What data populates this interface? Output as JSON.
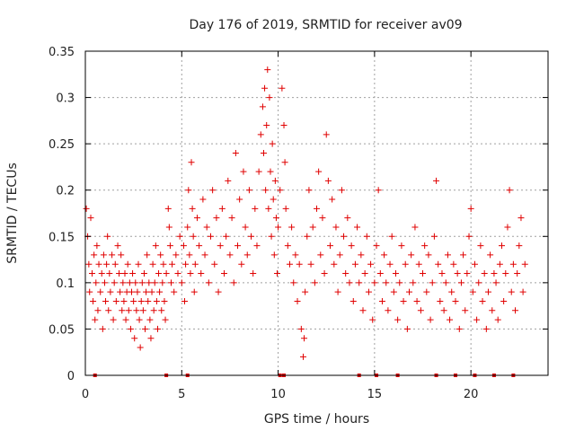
{
  "chart_data": {
    "type": "scatter",
    "title": "Day 176 of 2019, SRMTID for receiver av09",
    "xlabel": "GPS time / hours",
    "ylabel": "SRMTID / TECUs",
    "xlim": [
      0,
      24
    ],
    "ylim": [
      0,
      0.35
    ],
    "x_ticks": [
      0,
      5,
      10,
      15,
      20
    ],
    "x_tick_labels": [
      "0",
      "5",
      "10",
      "15",
      "20"
    ],
    "y_ticks": [
      0,
      0.05,
      0.1,
      0.15,
      0.2,
      0.25,
      0.3,
      0.35
    ],
    "y_tick_labels": [
      "0",
      "0.05",
      "0.1",
      "0.15",
      "0.2",
      "0.25",
      "0.3",
      "0.35"
    ],
    "grid": true,
    "marker": "+",
    "color": "#e00000",
    "series": [
      {
        "name": "SRMTID",
        "points": [
          [
            0.05,
            0.18
          ],
          [
            0.12,
            0.15
          ],
          [
            0.18,
            0.12
          ],
          [
            0.22,
            0.09
          ],
          [
            0.28,
            0.17
          ],
          [
            0.35,
            0.11
          ],
          [
            0.4,
            0.08
          ],
          [
            0.45,
            0.13
          ],
          [
            0.5,
            0.06
          ],
          [
            0.55,
            0.1
          ],
          [
            0.6,
            0.14
          ],
          [
            0.65,
            0.07
          ],
          [
            0.7,
            0.12
          ],
          [
            0.78,
            0.09
          ],
          [
            0.85,
            0.11
          ],
          [
            0.9,
            0.05
          ],
          [
            0.95,
            0.13
          ],
          [
            1.0,
            0.1
          ],
          [
            1.05,
            0.08
          ],
          [
            1.1,
            0.12
          ],
          [
            1.15,
            0.15
          ],
          [
            1.2,
            0.07
          ],
          [
            1.25,
            0.11
          ],
          [
            1.3,
            0.09
          ],
          [
            1.38,
            0.13
          ],
          [
            1.45,
            0.06
          ],
          [
            1.5,
            0.1
          ],
          [
            1.55,
            0.12
          ],
          [
            1.6,
            0.08
          ],
          [
            1.68,
            0.14
          ],
          [
            1.75,
            0.11
          ],
          [
            1.8,
            0.09
          ],
          [
            1.85,
            0.13
          ],
          [
            1.9,
            0.07
          ],
          [
            1.95,
            0.1
          ],
          [
            2.0,
            0.08
          ],
          [
            2.05,
            0.11
          ],
          [
            2.1,
            0.06
          ],
          [
            2.15,
            0.09
          ],
          [
            2.2,
            0.12
          ],
          [
            2.25,
            0.07
          ],
          [
            2.3,
            0.1
          ],
          [
            2.35,
            0.05
          ],
          [
            2.4,
            0.09
          ],
          [
            2.45,
            0.11
          ],
          [
            2.5,
            0.08
          ],
          [
            2.55,
            0.04
          ],
          [
            2.6,
            0.1
          ],
          [
            2.65,
            0.07
          ],
          [
            2.7,
            0.09
          ],
          [
            2.75,
            0.12
          ],
          [
            2.8,
            0.06
          ],
          [
            2.85,
            0.03
          ],
          [
            2.9,
            0.08
          ],
          [
            2.95,
            0.1
          ],
          [
            3.0,
            0.07
          ],
          [
            3.05,
            0.11
          ],
          [
            3.1,
            0.05
          ],
          [
            3.15,
            0.09
          ],
          [
            3.2,
            0.13
          ],
          [
            3.25,
            0.08
          ],
          [
            3.3,
            0.1
          ],
          [
            3.35,
            0.06
          ],
          [
            3.4,
            0.04
          ],
          [
            3.45,
            0.09
          ],
          [
            3.5,
            0.12
          ],
          [
            3.55,
            0.07
          ],
          [
            3.6,
            0.1
          ],
          [
            3.65,
            0.14
          ],
          [
            3.7,
            0.08
          ],
          [
            3.75,
            0.05
          ],
          [
            3.8,
            0.11
          ],
          [
            3.85,
            0.09
          ],
          [
            3.9,
            0.13
          ],
          [
            3.95,
            0.07
          ],
          [
            4.0,
            0.1
          ],
          [
            4.05,
            0.12
          ],
          [
            4.1,
            0.08
          ],
          [
            4.15,
            0.06
          ],
          [
            4.2,
            0.11
          ],
          [
            4.3,
            0.18
          ],
          [
            4.35,
            0.16
          ],
          [
            4.4,
            0.14
          ],
          [
            4.45,
            0.1
          ],
          [
            4.5,
            0.12
          ],
          [
            4.6,
            0.09
          ],
          [
            4.7,
            0.13
          ],
          [
            4.8,
            0.11
          ],
          [
            4.9,
            0.15
          ],
          [
            5.0,
            0.1
          ],
          [
            5.1,
            0.14
          ],
          [
            5.15,
            0.08
          ],
          [
            5.2,
            0.12
          ],
          [
            5.3,
            0.16
          ],
          [
            5.35,
            0.2
          ],
          [
            5.4,
            0.13
          ],
          [
            5.45,
            0.11
          ],
          [
            5.5,
            0.23
          ],
          [
            5.55,
            0.18
          ],
          [
            5.6,
            0.15
          ],
          [
            5.65,
            0.09
          ],
          [
            5.7,
            0.12
          ],
          [
            5.8,
            0.17
          ],
          [
            5.9,
            0.14
          ],
          [
            6.0,
            0.11
          ],
          [
            6.1,
            0.19
          ],
          [
            6.2,
            0.13
          ],
          [
            6.3,
            0.16
          ],
          [
            6.4,
            0.1
          ],
          [
            6.5,
            0.15
          ],
          [
            6.6,
            0.2
          ],
          [
            6.7,
            0.12
          ],
          [
            6.8,
            0.17
          ],
          [
            6.9,
            0.09
          ],
          [
            7.0,
            0.14
          ],
          [
            7.1,
            0.18
          ],
          [
            7.2,
            0.11
          ],
          [
            7.3,
            0.15
          ],
          [
            7.4,
            0.21
          ],
          [
            7.5,
            0.13
          ],
          [
            7.6,
            0.17
          ],
          [
            7.7,
            0.1
          ],
          [
            7.8,
            0.24
          ],
          [
            7.9,
            0.14
          ],
          [
            8.0,
            0.19
          ],
          [
            8.1,
            0.12
          ],
          [
            8.2,
            0.22
          ],
          [
            8.3,
            0.16
          ],
          [
            8.4,
            0.13
          ],
          [
            8.5,
            0.2
          ],
          [
            8.6,
            0.15
          ],
          [
            8.7,
            0.11
          ],
          [
            8.8,
            0.18
          ],
          [
            8.9,
            0.14
          ],
          [
            9.0,
            0.22
          ],
          [
            9.1,
            0.26
          ],
          [
            9.2,
            0.29
          ],
          [
            9.25,
            0.24
          ],
          [
            9.3,
            0.31
          ],
          [
            9.35,
            0.2
          ],
          [
            9.4,
            0.27
          ],
          [
            9.45,
            0.33
          ],
          [
            9.5,
            0.18
          ],
          [
            9.55,
            0.3
          ],
          [
            9.6,
            0.22
          ],
          [
            9.65,
            0.15
          ],
          [
            9.7,
            0.25
          ],
          [
            9.75,
            0.19
          ],
          [
            9.8,
            0.13
          ],
          [
            9.85,
            0.21
          ],
          [
            9.9,
            0.17
          ],
          [
            9.95,
            0.11
          ],
          [
            10.0,
            0.16
          ],
          [
            10.1,
            0.2
          ],
          [
            10.2,
            0.31
          ],
          [
            10.3,
            0.27
          ],
          [
            10.35,
            0.23
          ],
          [
            10.4,
            0.18
          ],
          [
            10.5,
            0.14
          ],
          [
            10.6,
            0.12
          ],
          [
            10.7,
            0.16
          ],
          [
            10.8,
            0.1
          ],
          [
            10.9,
            0.13
          ],
          [
            11.0,
            0.08
          ],
          [
            11.1,
            0.12
          ],
          [
            11.2,
            0.05
          ],
          [
            11.3,
            0.02
          ],
          [
            11.35,
            0.04
          ],
          [
            11.4,
            0.09
          ],
          [
            11.5,
            0.15
          ],
          [
            11.6,
            0.2
          ],
          [
            11.7,
            0.12
          ],
          [
            11.8,
            0.16
          ],
          [
            11.9,
            0.1
          ],
          [
            12.0,
            0.18
          ],
          [
            12.1,
            0.22
          ],
          [
            12.2,
            0.13
          ],
          [
            12.3,
            0.17
          ],
          [
            12.4,
            0.11
          ],
          [
            12.5,
            0.26
          ],
          [
            12.6,
            0.21
          ],
          [
            12.7,
            0.14
          ],
          [
            12.8,
            0.19
          ],
          [
            12.9,
            0.12
          ],
          [
            13.0,
            0.16
          ],
          [
            13.1,
            0.09
          ],
          [
            13.2,
            0.13
          ],
          [
            13.3,
            0.2
          ],
          [
            13.4,
            0.15
          ],
          [
            13.5,
            0.11
          ],
          [
            13.6,
            0.17
          ],
          [
            13.7,
            0.1
          ],
          [
            13.8,
            0.14
          ],
          [
            13.9,
            0.08
          ],
          [
            14.0,
            0.12
          ],
          [
            14.1,
            0.16
          ],
          [
            14.2,
            0.1
          ],
          [
            14.3,
            0.13
          ],
          [
            14.4,
            0.07
          ],
          [
            14.5,
            0.11
          ],
          [
            14.6,
            0.15
          ],
          [
            14.7,
            0.09
          ],
          [
            14.8,
            0.12
          ],
          [
            14.9,
            0.06
          ],
          [
            15.0,
            0.1
          ],
          [
            15.1,
            0.14
          ],
          [
            15.2,
            0.2
          ],
          [
            15.3,
            0.11
          ],
          [
            15.4,
            0.08
          ],
          [
            15.5,
            0.13
          ],
          [
            15.6,
            0.1
          ],
          [
            15.7,
            0.07
          ],
          [
            15.8,
            0.12
          ],
          [
            15.9,
            0.15
          ],
          [
            16.0,
            0.09
          ],
          [
            16.1,
            0.11
          ],
          [
            16.2,
            0.06
          ],
          [
            16.3,
            0.1
          ],
          [
            16.4,
            0.14
          ],
          [
            16.5,
            0.08
          ],
          [
            16.6,
            0.12
          ],
          [
            16.7,
            0.05
          ],
          [
            16.8,
            0.09
          ],
          [
            16.9,
            0.13
          ],
          [
            17.0,
            0.1
          ],
          [
            17.1,
            0.16
          ],
          [
            17.2,
            0.08
          ],
          [
            17.3,
            0.12
          ],
          [
            17.4,
            0.07
          ],
          [
            17.5,
            0.11
          ],
          [
            17.6,
            0.14
          ],
          [
            17.7,
            0.09
          ],
          [
            17.8,
            0.13
          ],
          [
            17.9,
            0.06
          ],
          [
            18.0,
            0.1
          ],
          [
            18.1,
            0.15
          ],
          [
            18.2,
            0.21
          ],
          [
            18.3,
            0.12
          ],
          [
            18.4,
            0.08
          ],
          [
            18.5,
            0.11
          ],
          [
            18.6,
            0.07
          ],
          [
            18.7,
            0.1
          ],
          [
            18.8,
            0.13
          ],
          [
            18.9,
            0.06
          ],
          [
            19.0,
            0.09
          ],
          [
            19.1,
            0.12
          ],
          [
            19.2,
            0.08
          ],
          [
            19.3,
            0.11
          ],
          [
            19.4,
            0.05
          ],
          [
            19.5,
            0.1
          ],
          [
            19.6,
            0.13
          ],
          [
            19.7,
            0.07
          ],
          [
            19.8,
            0.11
          ],
          [
            19.9,
            0.15
          ],
          [
            20.0,
            0.18
          ],
          [
            20.1,
            0.09
          ],
          [
            20.2,
            0.12
          ],
          [
            20.3,
            0.06
          ],
          [
            20.4,
            0.1
          ],
          [
            20.5,
            0.14
          ],
          [
            20.6,
            0.08
          ],
          [
            20.7,
            0.11
          ],
          [
            20.8,
            0.05
          ],
          [
            20.9,
            0.09
          ],
          [
            21.0,
            0.13
          ],
          [
            21.1,
            0.07
          ],
          [
            21.2,
            0.11
          ],
          [
            21.3,
            0.1
          ],
          [
            21.4,
            0.06
          ],
          [
            21.5,
            0.12
          ],
          [
            21.6,
            0.14
          ],
          [
            21.7,
            0.08
          ],
          [
            21.8,
            0.11
          ],
          [
            21.9,
            0.16
          ],
          [
            22.0,
            0.2
          ],
          [
            22.1,
            0.09
          ],
          [
            22.2,
            0.12
          ],
          [
            22.3,
            0.07
          ],
          [
            22.4,
            0.11
          ],
          [
            22.5,
            0.14
          ],
          [
            22.6,
            0.17
          ],
          [
            22.7,
            0.09
          ],
          [
            22.8,
            0.12
          ]
        ]
      }
    ],
    "zero_markers_x": [
      0.5,
      4.2,
      5.3,
      10.1,
      10.3,
      14.2,
      15.1,
      16.2,
      18.2,
      19.2,
      20.2,
      21.2,
      22.2
    ]
  }
}
